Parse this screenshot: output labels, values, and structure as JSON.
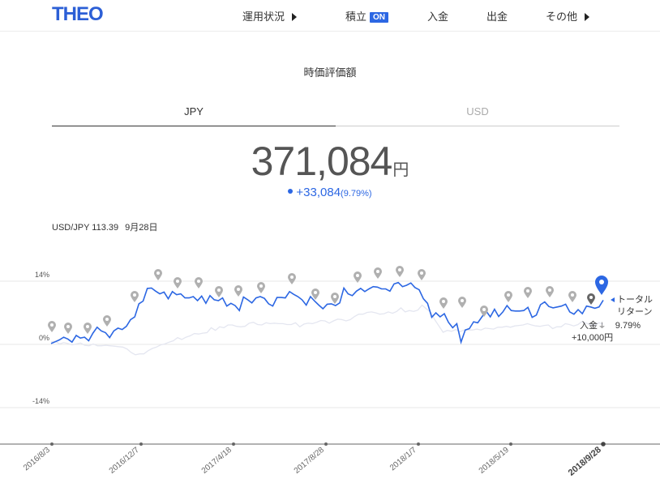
{
  "header": {
    "logo": "THEO",
    "nav": {
      "performance": "運用状況",
      "accumulation": "積立",
      "accumulation_badge": "ON",
      "deposit": "入金",
      "withdraw": "出金",
      "other": "その他"
    }
  },
  "title": "時価評価額",
  "tabs": {
    "jpy": "JPY",
    "usd": "USD",
    "selected": "JPY"
  },
  "valuation": {
    "amount": "371,084",
    "unit": "円",
    "change": "+33,084",
    "change_pct": "(9.79%)"
  },
  "fx": {
    "rate": "USD/JPY 113.39",
    "date": "9月28日"
  },
  "colors": {
    "accent": "#2c67e3",
    "brand": "#2c5fd6",
    "benchmark": "#e4e6f0",
    "marker": "#aaaaaa"
  },
  "chart_data": {
    "type": "line",
    "y_axis": {
      "unit": "%",
      "ticks": [
        "14%",
        "0%",
        "-14%"
      ],
      "values": [
        14,
        0,
        -14
      ],
      "ylim": [
        -22,
        20
      ]
    },
    "x_axis": {
      "ticks": [
        "2016/8/3",
        "2016/12/7",
        "2017/4/18",
        "2017/8/28",
        "2018/1/7",
        "2018/5/19",
        "2018/9/28"
      ]
    },
    "series": [
      {
        "role": "portfolio",
        "color": "#2c67e3",
        "values": [
          0.2,
          0.6,
          1,
          1.6,
          1.2,
          0.5,
          2,
          1.4,
          1.6,
          0.8,
          2.5,
          3.8,
          3,
          2.6,
          1.5,
          3,
          3.6,
          3.3,
          4,
          5.5,
          6.1,
          9,
          9.6,
          12.4,
          12.5,
          11.8,
          11.2,
          11.6,
          10.1,
          11.7,
          11,
          11.2,
          10.3,
          10.3,
          10.6,
          9.7,
          10.7,
          9.1,
          10.8,
          9.9,
          9.7,
          10.3,
          8.5,
          9.1,
          8.6,
          7.5,
          10.5,
          9.9,
          9.2,
          10.3,
          10.6,
          10.2,
          9,
          8.5,
          10.4,
          10.4,
          10.3,
          11.7,
          11.1,
          10.6,
          9.9,
          8.7,
          10.6,
          9.6,
          8.7,
          7.9,
          8.9,
          9,
          8.6,
          9.2,
          12.5,
          11.2,
          10.8,
          11.8,
          12.4,
          11.7,
          12.3,
          12.8,
          12.7,
          12.3,
          12.3,
          11.8,
          13.4,
          13.7,
          12.8,
          13.1,
          13.6,
          12.6,
          12.1,
          10.1,
          9.1,
          6,
          7,
          6.1,
          6.8,
          4.9,
          3.7,
          4.6,
          0.5,
          3.2,
          3.5,
          5,
          4.8,
          6.1,
          7.4,
          6.1,
          7.8,
          6.2,
          7.2,
          8.6,
          7.5,
          7.4,
          7.4,
          7.5,
          8.2,
          6,
          6.5,
          8.8,
          9.4,
          8.4,
          8.1,
          8.3,
          8.5,
          8.9,
          7.2,
          6.7,
          7.7,
          6.8,
          8.5,
          8.3,
          8,
          8.3,
          9.8
        ]
      },
      {
        "role": "benchmark",
        "color": "#e4e6f0",
        "values": [
          0.6,
          0.7,
          0.1,
          0.4,
          0.2,
          -0.1,
          0.1,
          0.3,
          -0.2,
          -0.3,
          0.1,
          -0.3,
          -0.3,
          -0.2,
          -0.3,
          -0.4,
          -0.5,
          -0.6,
          -1,
          -1.8,
          -2.3,
          -2.1,
          -2.1,
          -1.4,
          -0.9,
          -0.6,
          -0.1,
          0.1,
          0.5,
          0.8,
          1.5,
          1.1,
          1.6,
          1.9,
          2.4,
          2.3,
          2.5,
          2.6,
          3.7,
          3.1,
          3.9,
          3.7,
          4.3,
          4.3,
          4,
          3.9,
          4,
          4.7,
          4.9,
          4.4,
          4.3,
          4.8,
          4.6,
          4.7,
          4.6,
          4.6,
          4.4,
          4.4,
          4.8,
          3.9,
          4.5,
          4.7,
          4.6,
          4.9,
          5.3,
          5.2,
          4.7,
          5.2,
          5.6,
          5.5,
          5.2,
          5.5,
          6.2,
          6.7,
          6.7,
          7.1,
          7.2,
          7,
          6.7,
          6.8,
          7.2,
          6.9,
          7.3,
          8.1,
          7.2,
          7.5,
          7.3,
          7.6,
          8.7,
          7.9,
          7.2,
          5.5,
          4.1,
          2.7,
          3.1,
          2.9,
          3.3,
          2.8,
          3.2,
          3.2,
          3.2,
          3.4,
          3.2,
          3.6,
          3.5,
          3.4,
          3.8,
          3.8,
          4,
          3.8,
          4.1,
          4.2,
          4.3,
          4.6,
          4.3,
          4.1,
          4,
          4.2,
          4.3,
          3.5,
          3.9,
          3.9,
          4.6,
          4.4,
          4.1,
          4.4,
          5.1,
          4.7,
          4.3,
          4.3,
          4.8,
          4.5
        ]
      }
    ],
    "end_labels": {
      "total_return": "トータル\nリターン",
      "total_return_pct": "9.79%",
      "deposit": "入金",
      "deposit_amount": "+10,000円"
    }
  }
}
